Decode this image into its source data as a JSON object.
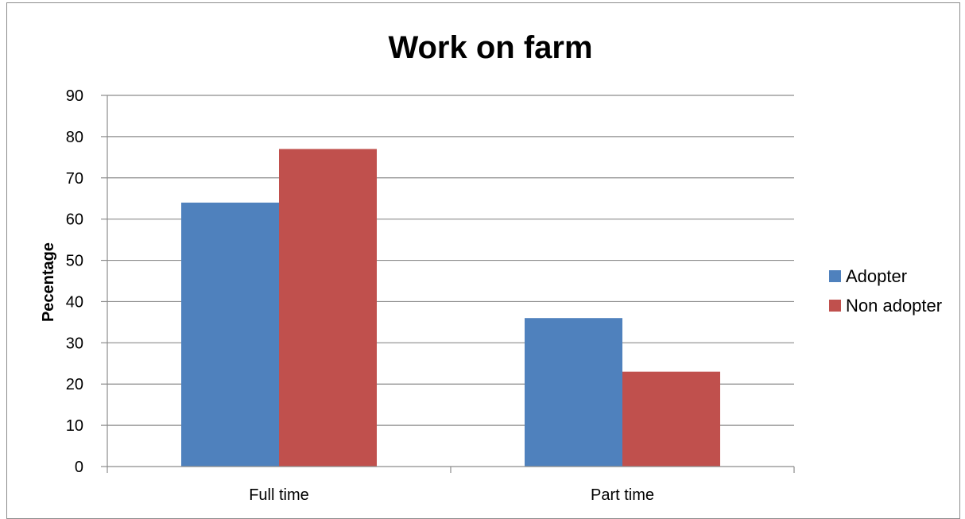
{
  "chart_data": {
    "type": "bar",
    "title": "Work on farm",
    "xlabel": "",
    "ylabel": "Pecentage",
    "categories": [
      "Full time",
      "Part time"
    ],
    "series": [
      {
        "name": "Adopter",
        "values": [
          64,
          36
        ],
        "color": "#4F81BD"
      },
      {
        "name": "Non adopter",
        "values": [
          77,
          23
        ],
        "color": "#C0504D"
      }
    ],
    "ylim": [
      0,
      90
    ],
    "yticks": [
      0,
      10,
      20,
      30,
      40,
      50,
      60,
      70,
      80,
      90
    ],
    "grid": true,
    "legend_position": "right"
  }
}
